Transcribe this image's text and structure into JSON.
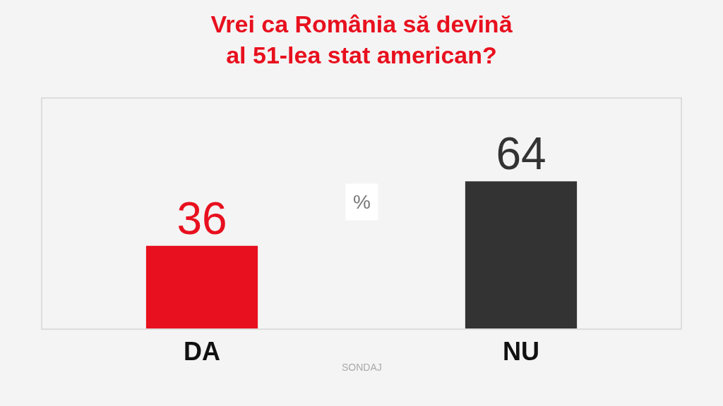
{
  "chart_data": {
    "type": "bar",
    "title": "Vrei ca România să devină\nal 51-lea stat american?",
    "categories": [
      "DA",
      "NU"
    ],
    "values": [
      36,
      64
    ],
    "colors": [
      "#e8101e",
      "#333333"
    ],
    "ylim": [
      0,
      100
    ],
    "data_labels": true,
    "tick_labels": "x",
    "grid": false,
    "legend": false,
    "annotations": [
      "%",
      "SONDAJ"
    ]
  }
}
